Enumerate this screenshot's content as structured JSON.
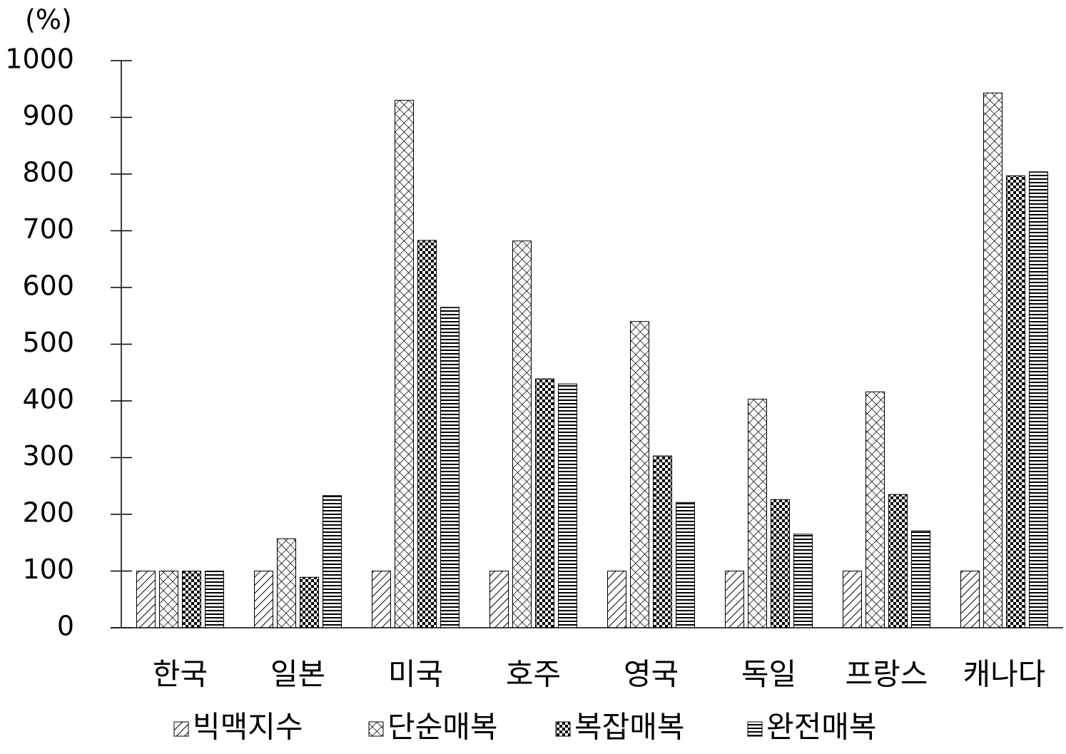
{
  "chart_data": {
    "type": "bar",
    "ylabel": "(%)",
    "categories": [
      "한국",
      "일본",
      "미국",
      "호주",
      "영국",
      "독일",
      "프랑스",
      "캐나다"
    ],
    "series": [
      {
        "name": "빅맥지수",
        "color": "#000000",
        "pattern": "diagonal",
        "values": [
          100,
          100,
          100,
          100,
          100,
          100,
          100,
          100
        ]
      },
      {
        "name": "단순매복",
        "color": "#000000",
        "pattern": "crosshatch",
        "values": [
          100,
          157,
          930,
          682,
          540,
          403,
          416,
          943
        ]
      },
      {
        "name": "복잡매복",
        "color": "#000000",
        "pattern": "checker",
        "values": [
          100,
          89,
          683,
          439,
          303,
          226,
          235,
          797
        ]
      },
      {
        "name": "완전매복",
        "color": "#000000",
        "pattern": "horizontal",
        "values": [
          100,
          233,
          565,
          430,
          221,
          165,
          171,
          804
        ]
      }
    ],
    "ylim": [
      0,
      1000
    ],
    "yticks": [
      0,
      100,
      200,
      300,
      400,
      500,
      600,
      700,
      800,
      900,
      1000
    ],
    "legend": "bottom"
  }
}
